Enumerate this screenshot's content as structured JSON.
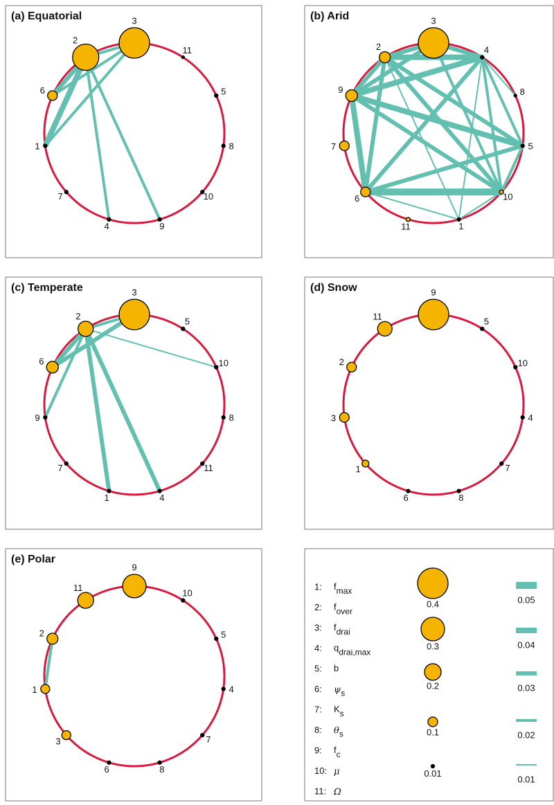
{
  "chart_data": [
    {
      "type": "network",
      "title": "(a) Equatorial",
      "nodes": [
        {
          "label": "3",
          "value": 0.4
        },
        {
          "label": "11",
          "value": 0
        },
        {
          "label": "5",
          "value": 0.01
        },
        {
          "label": "8",
          "value": 0.01
        },
        {
          "label": "10",
          "value": 0.01
        },
        {
          "label": "9",
          "value": 0.01
        },
        {
          "label": "4",
          "value": 0.01
        },
        {
          "label": "7",
          "value": 0.01
        },
        {
          "label": "1",
          "value": 0.01
        },
        {
          "label": "6",
          "value": 0.1
        },
        {
          "label": "2",
          "value": 0.34
        }
      ],
      "edges": [
        {
          "source": "2",
          "target": "3",
          "value": 0.02
        },
        {
          "source": "2",
          "target": "6",
          "value": 0.03
        },
        {
          "source": "2",
          "target": "1",
          "value": 0.04
        },
        {
          "source": "3",
          "target": "6",
          "value": 0.02
        },
        {
          "source": "3",
          "target": "1",
          "value": 0.02
        },
        {
          "source": "2",
          "target": "4",
          "value": 0.02
        },
        {
          "source": "2",
          "target": "9",
          "value": 0.02
        }
      ]
    },
    {
      "type": "network",
      "title": "(b) Arid",
      "nodes": [
        {
          "label": "3",
          "value": 0.4
        },
        {
          "label": "4",
          "value": 0.01
        },
        {
          "label": "8",
          "value": 0
        },
        {
          "label": "5",
          "value": 0.01
        },
        {
          "label": "10",
          "value": 0.02
        },
        {
          "label": "1",
          "value": 0.01
        },
        {
          "label": "11",
          "value": 0.02
        },
        {
          "label": "6",
          "value": 0.1
        },
        {
          "label": "7",
          "value": 0.1
        },
        {
          "label": "9",
          "value": 0.13
        },
        {
          "label": "2",
          "value": 0.12
        }
      ],
      "edges": [
        {
          "source": "2",
          "target": "4",
          "value": 0.04
        },
        {
          "source": "2",
          "target": "3",
          "value": 0.03
        },
        {
          "source": "3",
          "target": "4",
          "value": 0.03
        },
        {
          "source": "9",
          "target": "4",
          "value": 0.04
        },
        {
          "source": "9",
          "target": "2",
          "value": 0.03
        },
        {
          "source": "9",
          "target": "3",
          "value": 0.03
        },
        {
          "source": "2",
          "target": "6",
          "value": 0.03
        },
        {
          "source": "9",
          "target": "6",
          "value": 0.04
        },
        {
          "source": "9",
          "target": "5",
          "value": 0.04
        },
        {
          "source": "9",
          "target": "10",
          "value": 0.03
        },
        {
          "source": "6",
          "target": "4",
          "value": 0.03
        },
        {
          "source": "6",
          "target": "5",
          "value": 0.03
        },
        {
          "source": "6",
          "target": "10",
          "value": 0.05
        },
        {
          "source": "4",
          "target": "10",
          "value": 0.02
        },
        {
          "source": "4",
          "target": "5",
          "value": 0.02
        },
        {
          "source": "4",
          "target": "8",
          "value": 0.01
        },
        {
          "source": "2",
          "target": "5",
          "value": 0.03
        },
        {
          "source": "2",
          "target": "10",
          "value": 0.03
        },
        {
          "source": "6",
          "target": "1",
          "value": 0.01
        },
        {
          "source": "2",
          "target": "1",
          "value": 0.01
        },
        {
          "source": "4",
          "target": "1",
          "value": 0.01
        },
        {
          "source": "10",
          "target": "1",
          "value": 0.01
        },
        {
          "source": "3",
          "target": "10",
          "value": 0.02
        },
        {
          "source": "5",
          "target": "10",
          "value": 0.02
        }
      ]
    },
    {
      "type": "network",
      "title": "(c) Temperate",
      "nodes": [
        {
          "label": "3",
          "value": 0.4
        },
        {
          "label": "5",
          "value": 0.01
        },
        {
          "label": "10",
          "value": 0.01
        },
        {
          "label": "8",
          "value": 0.01
        },
        {
          "label": "11",
          "value": 0.01
        },
        {
          "label": "4",
          "value": 0.01
        },
        {
          "label": "1",
          "value": 0.01
        },
        {
          "label": "7",
          "value": 0.01
        },
        {
          "label": "9",
          "value": 0.01
        },
        {
          "label": "6",
          "value": 0.13
        },
        {
          "label": "2",
          "value": 0.18
        }
      ],
      "edges": [
        {
          "source": "2",
          "target": "3",
          "value": 0.02
        },
        {
          "source": "3",
          "target": "6",
          "value": 0.03
        },
        {
          "source": "2",
          "target": "6",
          "value": 0.03
        },
        {
          "source": "2",
          "target": "10",
          "value": 0.01
        },
        {
          "source": "2",
          "target": "9",
          "value": 0.02
        },
        {
          "source": "2",
          "target": "1",
          "value": 0.03
        },
        {
          "source": "2",
          "target": "4",
          "value": 0.03
        }
      ]
    },
    {
      "type": "network",
      "title": "(d) Snow",
      "nodes": [
        {
          "label": "9",
          "value": 0.4
        },
        {
          "label": "5",
          "value": 0.01
        },
        {
          "label": "10",
          "value": 0.01
        },
        {
          "label": "4",
          "value": 0.01
        },
        {
          "label": "7",
          "value": 0.01
        },
        {
          "label": "8",
          "value": 0.01
        },
        {
          "label": "6",
          "value": 0.01
        },
        {
          "label": "1",
          "value": 0.06
        },
        {
          "label": "3",
          "value": 0.1
        },
        {
          "label": "2",
          "value": 0.1
        },
        {
          "label": "11",
          "value": 0.17
        }
      ],
      "edges": []
    },
    {
      "type": "network",
      "title": "(e) Polar",
      "nodes": [
        {
          "label": "9",
          "value": 0.3
        },
        {
          "label": "10",
          "value": 0.01
        },
        {
          "label": "5",
          "value": 0.01
        },
        {
          "label": "4",
          "value": 0.01
        },
        {
          "label": "7",
          "value": 0.01
        },
        {
          "label": "8",
          "value": 0.01
        },
        {
          "label": "6",
          "value": 0.01
        },
        {
          "label": "3",
          "value": 0.09
        },
        {
          "label": "1",
          "value": 0.09
        },
        {
          "label": "2",
          "value": 0.12
        },
        {
          "label": "11",
          "value": 0.19
        }
      ],
      "edges": [
        {
          "source": "2",
          "target": "1",
          "value": 0.02
        }
      ]
    }
  ],
  "legend": {
    "parameters": [
      {
        "number": "1:",
        "symbol": "f",
        "subscript": "max"
      },
      {
        "number": "2:",
        "symbol": "f",
        "subscript": "over"
      },
      {
        "number": "3:",
        "symbol": "f",
        "subscript": "drai"
      },
      {
        "number": "4:",
        "symbol": "q",
        "subscript": "drai,max"
      },
      {
        "number": "5:",
        "symbol": "b"
      },
      {
        "number": "6:",
        "symbol": "ψ",
        "subscript": "s"
      },
      {
        "number": "7:",
        "symbol": "K",
        "subscript": "s"
      },
      {
        "number": "8:",
        "symbol": "θ",
        "subscript": "s"
      },
      {
        "number": "9:",
        "symbol": "f",
        "subscript": "c"
      },
      {
        "number": "10:",
        "symbol": "μ"
      },
      {
        "number": "11:",
        "symbol": "Ω"
      }
    ],
    "node_sizes": [
      0.4,
      0.3,
      0.2,
      0.1,
      0.01
    ],
    "edge_widths": [
      0.05,
      0.04,
      0.03,
      0.02,
      0.01
    ]
  }
}
